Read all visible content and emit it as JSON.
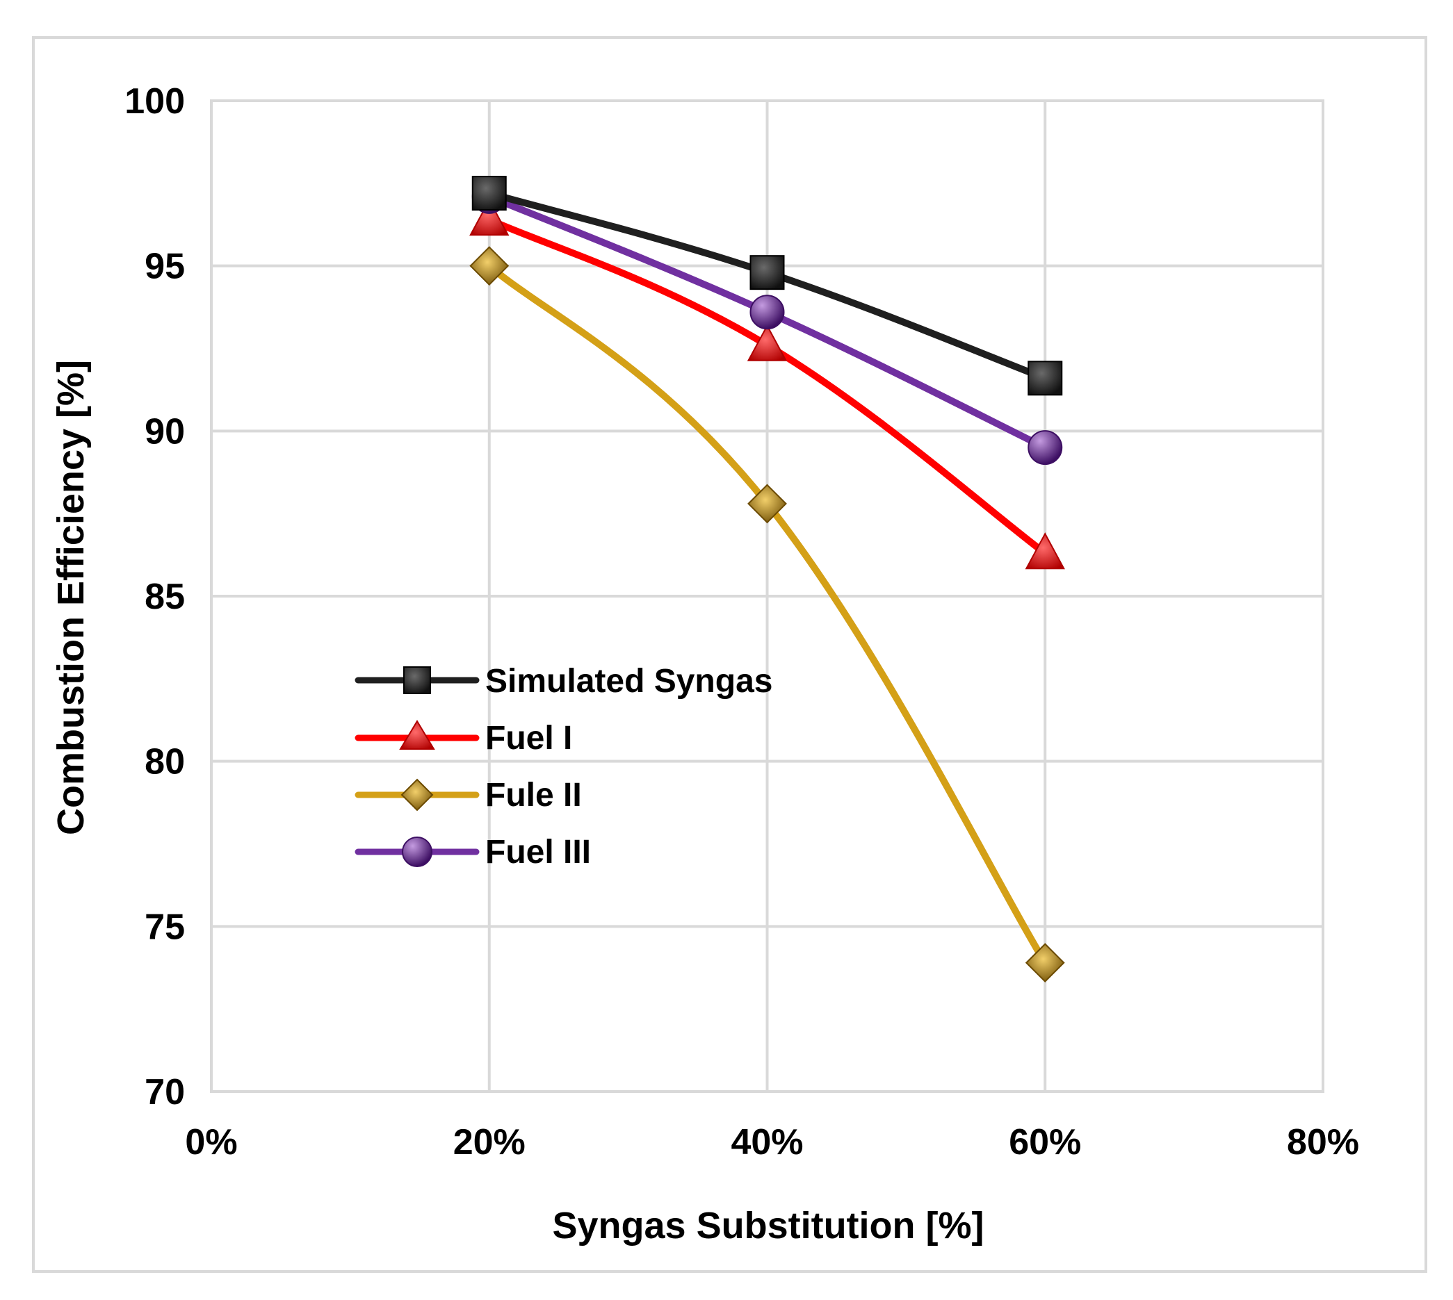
{
  "chart_data": {
    "type": "line",
    "title": "",
    "xlabel": "Syngas Substitution [%]",
    "ylabel": "Combustion Efficiency [%]",
    "xlim": [
      0,
      80
    ],
    "ylim": [
      70,
      100
    ],
    "x_ticks": [
      0,
      20,
      40,
      60,
      80
    ],
    "x_tick_labels": [
      "0%",
      "20%",
      "40%",
      "60%",
      "80%"
    ],
    "y_ticks": [
      70,
      75,
      80,
      85,
      90,
      95,
      100
    ],
    "y_tick_labels": [
      "70",
      "75",
      "80",
      "85",
      "90",
      "95",
      "100"
    ],
    "grid": true,
    "legend_position": "center-left",
    "x": [
      20,
      40,
      60
    ],
    "series": [
      {
        "name": "Simulated Syngas",
        "values": [
          97.2,
          94.8,
          91.6
        ],
        "color": "#1f1f1f",
        "marker": "square"
      },
      {
        "name": "Fuel I",
        "values": [
          96.4,
          92.6,
          86.3
        ],
        "color": "#ff0000",
        "marker": "triangle"
      },
      {
        "name": "Fule II",
        "values": [
          95.0,
          87.8,
          73.9
        ],
        "color": "#d4a017",
        "marker": "diamond"
      },
      {
        "name": "Fuel III",
        "values": [
          97.1,
          93.6,
          89.5
        ],
        "color": "#7030a0",
        "marker": "circle"
      }
    ]
  }
}
